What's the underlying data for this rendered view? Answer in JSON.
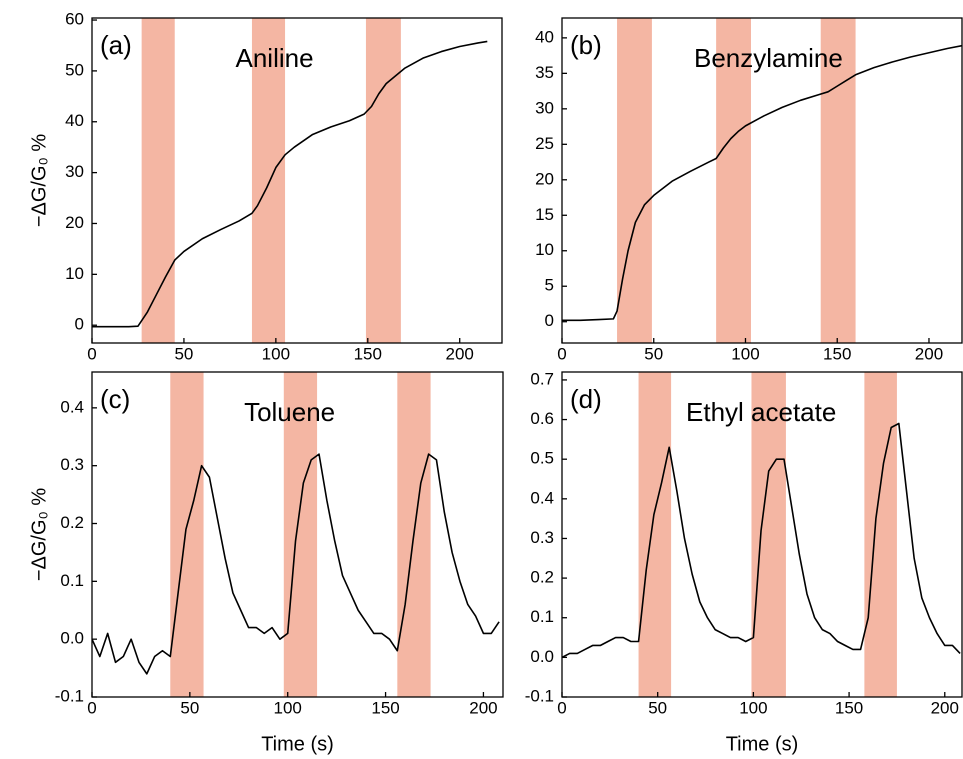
{
  "chart_data": [
    {
      "type": "line",
      "panel_label": "(a)",
      "title": "Aniline",
      "y_label": "−ΔG/G₀ %",
      "xlim": [
        0,
        223
      ],
      "ylim": [
        -3.5,
        60.4
      ],
      "xticks": [
        0,
        50,
        100,
        150,
        200
      ],
      "yticks": [
        0,
        10,
        20,
        30,
        40,
        50,
        60
      ],
      "shaded_regions": [
        [
          27,
          45
        ],
        [
          87,
          105
        ],
        [
          149,
          168
        ]
      ],
      "shade_color": "#f4b6a3",
      "x": [
        0,
        10,
        20,
        25,
        30,
        35,
        40,
        45,
        50,
        60,
        70,
        80,
        87,
        90,
        95,
        100,
        105,
        110,
        120,
        130,
        140,
        148,
        152,
        156,
        160,
        165,
        170,
        180,
        190,
        200,
        210,
        215
      ],
      "series": [
        {
          "color": "#000000",
          "values": [
            -0.3,
            -0.3,
            -0.3,
            -0.2,
            2.5,
            6,
            9.5,
            12.8,
            14.5,
            17,
            18.8,
            20.5,
            22,
            23.5,
            27,
            31,
            33.5,
            35,
            37.5,
            39,
            40.2,
            41.5,
            43,
            45.5,
            47.5,
            49,
            50.5,
            52.5,
            53.8,
            54.8,
            55.5,
            55.8
          ]
        }
      ]
    },
    {
      "type": "line",
      "panel_label": "(b)",
      "title": "Benzylamine",
      "xlim": [
        0,
        218
      ],
      "ylim": [
        -3,
        42.8
      ],
      "xticks": [
        0,
        50,
        100,
        150,
        200
      ],
      "yticks": [
        0,
        5,
        10,
        15,
        20,
        25,
        30,
        35,
        40
      ],
      "shaded_regions": [
        [
          30,
          49
        ],
        [
          84,
          103
        ],
        [
          141,
          160
        ]
      ],
      "shade_color": "#f4b6a3",
      "x": [
        0,
        10,
        20,
        28,
        30,
        33,
        36,
        40,
        45,
        50,
        60,
        70,
        80,
        84,
        88,
        92,
        96,
        100,
        110,
        120,
        130,
        140,
        145,
        150,
        155,
        160,
        170,
        180,
        190,
        200,
        210,
        218
      ],
      "series": [
        {
          "color": "#000000",
          "values": [
            0.2,
            0.2,
            0.3,
            0.4,
            1.5,
            6,
            10,
            14,
            16.5,
            17.8,
            19.8,
            21.2,
            22.5,
            23,
            24.5,
            25.8,
            26.8,
            27.6,
            29,
            30.2,
            31.2,
            32,
            32.4,
            33.2,
            34,
            34.8,
            35.8,
            36.6,
            37.3,
            37.9,
            38.5,
            38.9
          ]
        }
      ]
    },
    {
      "type": "line",
      "panel_label": "(c)",
      "title": "Toluene",
      "y_label": "−ΔG/G₀ %",
      "x_label": "Time (s)",
      "xlim": [
        0,
        210
      ],
      "ylim": [
        -0.1,
        0.462
      ],
      "xticks": [
        0,
        50,
        100,
        150,
        200
      ],
      "yticks": [
        -0.1,
        {
          "value": 0,
          "label": "0.0"
        },
        0.1,
        0.2,
        0.3,
        0.4
      ],
      "shaded_regions": [
        [
          40,
          57
        ],
        [
          98,
          115
        ],
        [
          156,
          173
        ]
      ],
      "shade_color": "#f4b6a3",
      "x": [
        0,
        4,
        8,
        12,
        16,
        20,
        24,
        28,
        32,
        36,
        40,
        44,
        48,
        52,
        56,
        60,
        64,
        68,
        72,
        76,
        80,
        84,
        88,
        92,
        96,
        100,
        104,
        108,
        112,
        116,
        120,
        124,
        128,
        132,
        136,
        140,
        144,
        148,
        152,
        156,
        160,
        164,
        168,
        172,
        176,
        180,
        184,
        188,
        192,
        196,
        200,
        204,
        208
      ],
      "series": [
        {
          "color": "#000000",
          "values": [
            0.0,
            -0.03,
            0.01,
            -0.04,
            -0.03,
            0.0,
            -0.04,
            -0.06,
            -0.03,
            -0.02,
            -0.03,
            0.08,
            0.19,
            0.24,
            0.3,
            0.28,
            0.21,
            0.14,
            0.08,
            0.05,
            0.02,
            0.02,
            0.01,
            0.02,
            0.0,
            0.01,
            0.17,
            0.27,
            0.31,
            0.32,
            0.24,
            0.17,
            0.11,
            0.08,
            0.05,
            0.03,
            0.01,
            0.01,
            0.0,
            -0.02,
            0.06,
            0.17,
            0.27,
            0.32,
            0.31,
            0.22,
            0.15,
            0.1,
            0.06,
            0.04,
            0.01,
            0.01,
            0.03
          ]
        }
      ]
    },
    {
      "type": "line",
      "panel_label": "(d)",
      "title": "Ethyl acetate",
      "x_label": "Time (s)",
      "xlim": [
        0,
        209
      ],
      "ylim": [
        -0.1,
        0.72
      ],
      "xticks": [
        0,
        50,
        100,
        150,
        200
      ],
      "yticks": [
        -0.1,
        {
          "value": 0,
          "label": "0.0"
        },
        0.1,
        0.2,
        0.3,
        0.4,
        0.5,
        0.6,
        0.7
      ],
      "shaded_regions": [
        [
          40,
          57
        ],
        [
          99,
          117
        ],
        [
          158,
          175
        ]
      ],
      "shade_color": "#f4b6a3",
      "x": [
        0,
        4,
        8,
        12,
        16,
        20,
        24,
        28,
        32,
        36,
        40,
        44,
        48,
        52,
        56,
        60,
        64,
        68,
        72,
        76,
        80,
        84,
        88,
        92,
        96,
        100,
        104,
        108,
        112,
        116,
        120,
        124,
        128,
        132,
        136,
        140,
        144,
        148,
        152,
        156,
        160,
        164,
        168,
        172,
        176,
        180,
        184,
        188,
        192,
        196,
        200,
        204,
        208
      ],
      "series": [
        {
          "color": "#000000",
          "values": [
            0.0,
            0.01,
            0.01,
            0.02,
            0.03,
            0.03,
            0.04,
            0.05,
            0.05,
            0.04,
            0.04,
            0.22,
            0.36,
            0.44,
            0.53,
            0.42,
            0.3,
            0.21,
            0.14,
            0.1,
            0.07,
            0.06,
            0.05,
            0.05,
            0.04,
            0.05,
            0.32,
            0.47,
            0.5,
            0.5,
            0.38,
            0.26,
            0.16,
            0.1,
            0.07,
            0.06,
            0.04,
            0.03,
            0.02,
            0.02,
            0.1,
            0.35,
            0.49,
            0.58,
            0.59,
            0.42,
            0.25,
            0.15,
            0.1,
            0.06,
            0.03,
            0.03,
            0.01
          ]
        }
      ]
    }
  ]
}
